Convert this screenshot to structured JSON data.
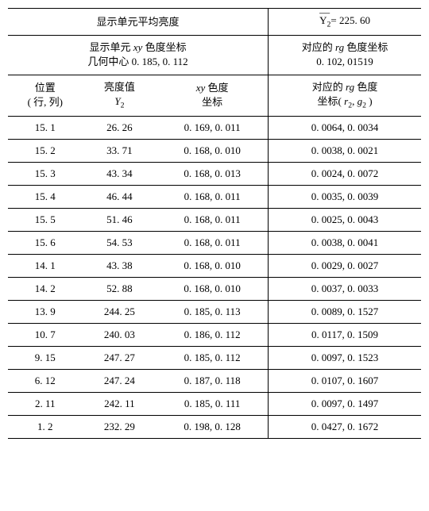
{
  "header": {
    "left_title": "显示单元平均亮度",
    "right_title_prefix": "Y",
    "right_title_value": "= 225. 60",
    "sub_left_l1_a": "显示单元 ",
    "sub_left_l1_ital": "xy",
    "sub_left_l1_b": " 色度坐标",
    "sub_left_l2": "几何中心 0. 185, 0. 112",
    "sub_right_l1_a": "对应的 ",
    "sub_right_l1_ital": "rg",
    "sub_right_l1_b": " 色度坐标",
    "sub_right_l2": "0. 102, 01519"
  },
  "cols": {
    "c1_l1": "位置",
    "c1_l2": "( 行, 列)",
    "c2_l1": "亮度值",
    "c2_sym": "Y",
    "c2_sub": "2",
    "c3_ital": "xy",
    "c3_l1": " 色度",
    "c3_l2": "坐标",
    "c4_l1_a": "对应的 ",
    "c4_ital": "rg",
    "c4_l1_b": " 色度",
    "c4_l2_a": "坐标( ",
    "c4_r": "r",
    "c4_rs": "2",
    "c4_comma": ", ",
    "c4_g": "g",
    "c4_gs": "2",
    "c4_l2_b": " )"
  },
  "rows": [
    {
      "pos": "15. 1",
      "y": "26. 26",
      "xy": "0. 169, 0. 011",
      "rg": "0. 0064, 0. 0034"
    },
    {
      "pos": "15. 2",
      "y": "33. 71",
      "xy": "0. 168, 0. 010",
      "rg": "0. 0038, 0. 0021"
    },
    {
      "pos": "15. 3",
      "y": "43. 34",
      "xy": "0. 168, 0. 013",
      "rg": "0. 0024, 0. 0072"
    },
    {
      "pos": "15. 4",
      "y": "46. 44",
      "xy": "0. 168, 0. 011",
      "rg": "0. 0035, 0. 0039"
    },
    {
      "pos": "15. 5",
      "y": "51. 46",
      "xy": "0. 168, 0. 011",
      "rg": "0. 0025, 0. 0043"
    },
    {
      "pos": "15. 6",
      "y": "54. 53",
      "xy": "0. 168, 0. 011",
      "rg": "0. 0038, 0. 0041"
    },
    {
      "pos": "14. 1",
      "y": "43. 38",
      "xy": "0. 168, 0. 010",
      "rg": "0. 0029, 0. 0027"
    },
    {
      "pos": "14. 2",
      "y": "52. 88",
      "xy": "0. 168, 0. 010",
      "rg": "0. 0037, 0. 0033"
    },
    {
      "pos": "13. 9",
      "y": "244. 25",
      "xy": "0. 185, 0. 113",
      "rg": "0. 0089, 0. 1527"
    },
    {
      "pos": "10. 7",
      "y": "240. 03",
      "xy": "0. 186, 0. 112",
      "rg": "0. 0117, 0. 1509"
    },
    {
      "pos": "9. 15",
      "y": "247. 27",
      "xy": "0. 185, 0. 112",
      "rg": "0. 0097, 0. 1523"
    },
    {
      "pos": "6. 12",
      "y": "247. 24",
      "xy": "0. 187, 0. 118",
      "rg": "0. 0107, 0. 1607"
    },
    {
      "pos": "2. 11",
      "y": "242. 11",
      "xy": "0. 185, 0. 111",
      "rg": "0. 0097, 0. 1497"
    },
    {
      "pos": "1. 2",
      "y": "232. 29",
      "xy": "0. 198, 0. 128",
      "rg": "0. 0427, 0. 1672"
    }
  ],
  "style": {
    "font_size_pt": 13,
    "background": "#ffffff",
    "text_color": "#000000",
    "border_color": "#000000"
  }
}
